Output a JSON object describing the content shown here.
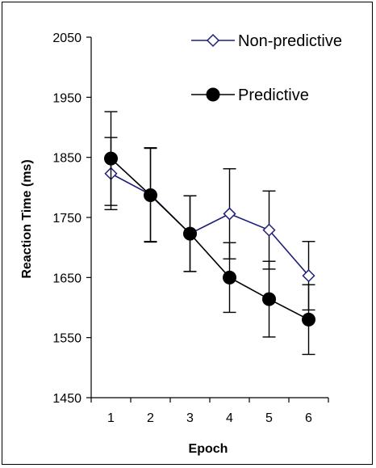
{
  "chart_data": {
    "type": "line",
    "title": "",
    "xlabel": "Epoch",
    "ylabel": "Reaction Time (ms)",
    "x": [
      1,
      2,
      3,
      4,
      5,
      6
    ],
    "xlim": [
      0.5,
      6.5
    ],
    "ylim": [
      1450,
      2050
    ],
    "yticks": [
      1450,
      1550,
      1650,
      1750,
      1850,
      1950,
      2050
    ],
    "grid": false,
    "legend_position": "top-right",
    "series": [
      {
        "name": "Non-predictive",
        "marker": "open-diamond",
        "color": "#1f1f7a",
        "values": [
          1823,
          1788,
          1723,
          1756,
          1729,
          1653
        ],
        "error": [
          60,
          78,
          63,
          75,
          65,
          57
        ]
      },
      {
        "name": "Predictive",
        "marker": "filled-circle",
        "color": "#000000",
        "values": [
          1848,
          1787,
          1723,
          1650,
          1614,
          1580
        ],
        "error": [
          78,
          78,
          63,
          58,
          63,
          58
        ]
      }
    ]
  }
}
